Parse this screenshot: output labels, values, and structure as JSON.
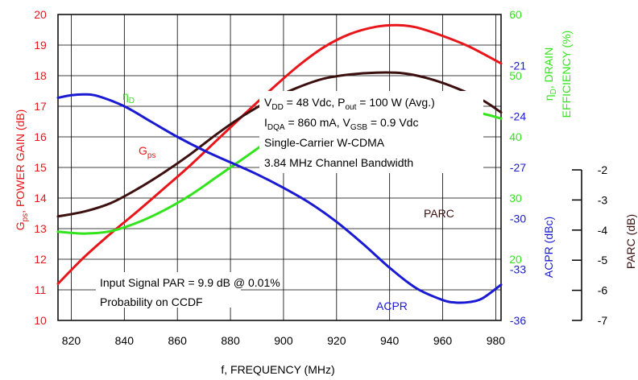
{
  "chart_data": {
    "type": "line",
    "x_axis": {
      "label": "f, FREQUENCY (MHz)",
      "range": [
        815,
        982
      ],
      "ticks": [
        820,
        840,
        860,
        880,
        900,
        920,
        940,
        960,
        980
      ]
    },
    "axes": {
      "gain": {
        "label_main": "G",
        "label_sub": "ps",
        "label_rest": ", POWER GAIN (dB)",
        "range": [
          10,
          20
        ],
        "ticks": [
          10,
          11,
          12,
          13,
          14,
          15,
          16,
          17,
          18,
          19,
          20
        ],
        "color": "#e8161b"
      },
      "efficiency": {
        "label_main": "η",
        "label_sub": "D",
        "label_rest": ", DRAIN",
        "label_line2": "EFFICIENCY (%)",
        "range": [
          10,
          60
        ],
        "ticks": [
          20,
          30,
          40,
          50,
          60
        ],
        "color": "#33e41c"
      },
      "acpr": {
        "label": "ACPR (dBc)",
        "range": [
          -36,
          -18
        ],
        "ticks": [
          -36,
          -33,
          -30,
          -27,
          -24,
          -21
        ],
        "color": "#1a1ad2"
      },
      "parc": {
        "label": "PARC (dB)",
        "range": [
          -7,
          -2
        ],
        "ticks": [
          -7,
          -6,
          -5,
          -4,
          -3,
          -2
        ],
        "color": "#000000"
      }
    },
    "series": [
      {
        "name": "Gps",
        "name_main": "G",
        "name_sub": "ps",
        "axis": "gain",
        "color": "#e8161b",
        "x": [
          815,
          825,
          835,
          845,
          855,
          865,
          875,
          885,
          895,
          905,
          915,
          925,
          935,
          943,
          950,
          960,
          970,
          982
        ],
        "y": [
          11.2,
          12.08,
          12.85,
          13.57,
          14.32,
          15.08,
          15.9,
          16.72,
          17.52,
          18.28,
          18.92,
          19.36,
          19.6,
          19.65,
          19.58,
          19.3,
          18.95,
          18.4
        ]
      },
      {
        "name": "ηD",
        "name_main": "η",
        "name_sub": "D",
        "axis": "efficiency",
        "color": "#33e41c",
        "x": [
          815,
          825,
          835,
          845,
          855,
          865,
          875,
          885,
          895,
          905,
          915,
          925,
          935,
          945,
          955,
          965,
          975,
          982
        ],
        "y": [
          24.5,
          24.2,
          24.6,
          26.0,
          28.0,
          30.5,
          33.5,
          36.5,
          39.5,
          41.8,
          43.5,
          44.6,
          45.0,
          45.0,
          44.8,
          44.5,
          43.8,
          43.0
        ]
      },
      {
        "name": "PARC",
        "axis": "parc",
        "color": "#3d1010",
        "x": [
          815,
          825,
          835,
          845,
          855,
          865,
          875,
          885,
          895,
          905,
          915,
          925,
          935,
          945,
          955,
          965,
          975,
          982
        ],
        "y": [
          -5.3,
          -5.22,
          -5.08,
          -4.85,
          -4.58,
          -4.28,
          -3.95,
          -3.65,
          -3.4,
          -3.2,
          -3.05,
          -2.98,
          -2.95,
          -2.96,
          -3.05,
          -3.2,
          -3.4,
          -3.6
        ]
      },
      {
        "name": "ACPR",
        "axis": "acpr",
        "color": "#1a1ad2",
        "x": [
          815,
          820,
          825,
          830,
          840,
          850,
          860,
          870,
          880,
          890,
          900,
          910,
          920,
          930,
          940,
          950,
          960,
          965,
          970,
          975,
          982
        ],
        "y": [
          -22.9,
          -22.75,
          -22.7,
          -22.8,
          -23.4,
          -24.3,
          -25.2,
          -26.0,
          -26.7,
          -27.4,
          -28.2,
          -29.1,
          -30.2,
          -31.5,
          -32.9,
          -34.1,
          -34.8,
          -34.95,
          -34.92,
          -34.7,
          -33.9
        ]
      }
    ],
    "annotations": {
      "conditions": [
        {
          "main": "V",
          "sub": "DD",
          "rest": " = 48 Vdc, P",
          "sub2": "out",
          "rest2": " = 100 W (Avg.)"
        },
        {
          "main": "I",
          "sub": "DQA",
          "rest": " = 860 mA, V",
          "sub2": "GSB",
          "rest2": " = 0.9 Vdc"
        },
        {
          "main": "Single-Carrier W-CDMA"
        },
        {
          "main": "3.84 MHz Channel Bandwidth"
        }
      ],
      "signal": [
        "Input Signal PAR = 9.9 dB @ 0.01%",
        "Probability on CCDF"
      ]
    },
    "grid": true
  }
}
